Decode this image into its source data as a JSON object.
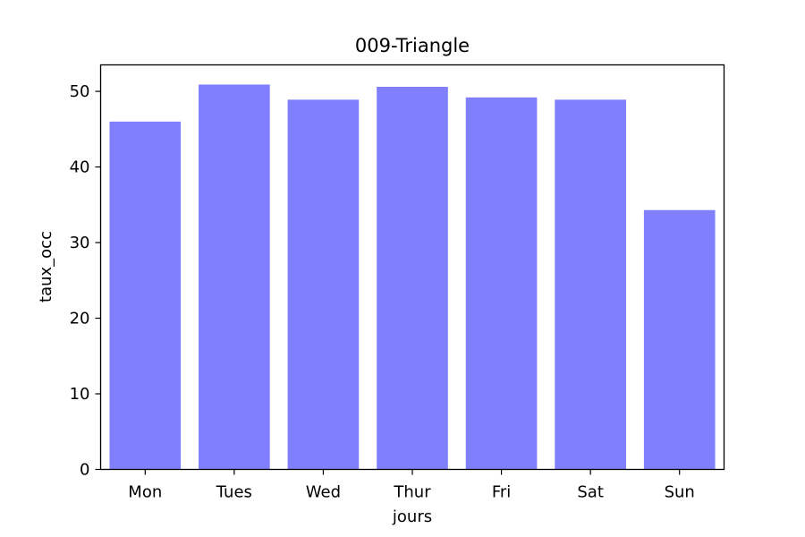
{
  "chart_data": {
    "type": "bar",
    "title": "009-Triangle",
    "xlabel": "jours",
    "ylabel": "taux_occ",
    "categories": [
      "Mon",
      "Tues",
      "Wed",
      "Thur",
      "Fri",
      "Sat",
      "Sun"
    ],
    "values": [
      46.0,
      50.9,
      48.9,
      50.6,
      49.2,
      48.9,
      34.3
    ],
    "ylim": [
      0,
      53.5
    ],
    "yticks": [
      0,
      10,
      20,
      30,
      40,
      50
    ],
    "bar_color": "#8080ff",
    "grid": false,
    "legend": "none"
  }
}
